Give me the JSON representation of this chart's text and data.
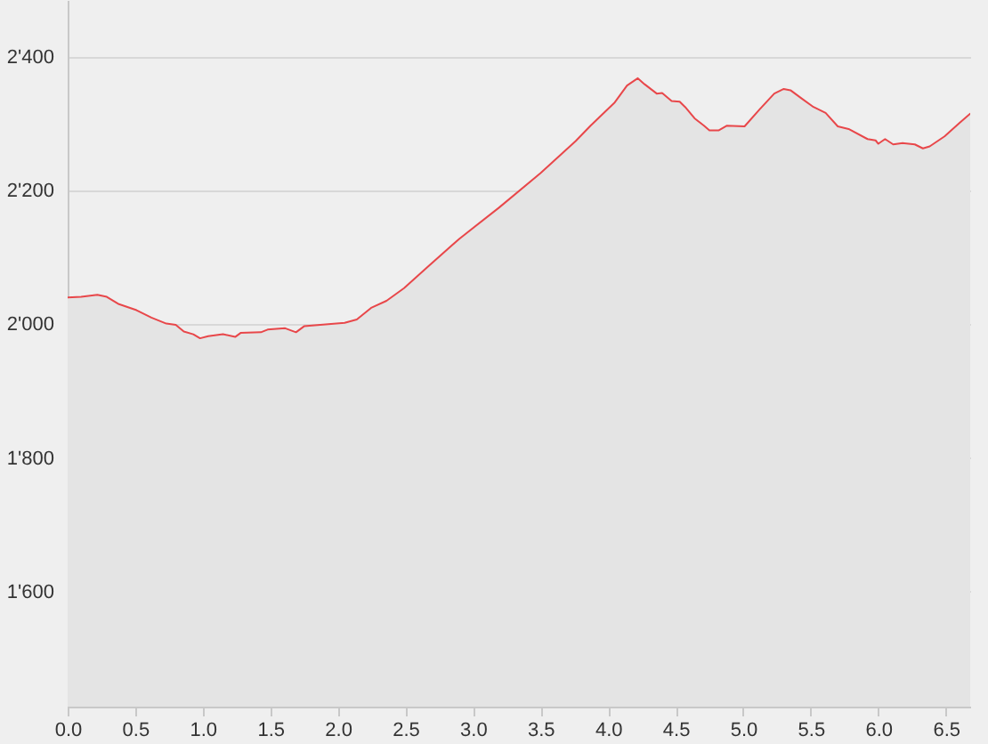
{
  "chart_data": {
    "type": "area",
    "x": [
      0,
      0.1,
      0.22,
      0.29,
      0.38,
      0.51,
      0.62,
      0.73,
      0.8,
      0.86,
      0.93,
      0.98,
      1.04,
      1.15,
      1.24,
      1.28,
      1.43,
      1.48,
      1.61,
      1.69,
      1.75,
      1.87,
      2.05,
      2.14,
      2.25,
      2.36,
      2.49,
      2.66,
      2.9,
      3.19,
      3.5,
      3.63,
      3.76,
      3.87,
      4.05,
      4.14,
      4.22,
      4.27,
      4.36,
      4.4,
      4.47,
      4.53,
      4.57,
      4.64,
      4.71,
      4.75,
      4.82,
      4.88,
      5.01,
      5.12,
      5.23,
      5.3,
      5.35,
      5.43,
      5.52,
      5.61,
      5.7,
      5.78,
      5.92,
      5.98,
      6.0,
      6.05,
      6.11,
      6.18,
      6.27,
      6.33,
      6.38,
      6.49,
      6.6,
      6.68
    ],
    "series": [
      {
        "color": "#e8474a",
        "values": [
          2040,
          2041,
          2044,
          2041,
          2030,
          2021,
          2010,
          2001,
          1999,
          1989,
          1985,
          1979,
          1982,
          1985,
          1981,
          1987,
          1988,
          1992,
          1994,
          1988,
          1997,
          1999,
          2002,
          2007,
          2025,
          2035,
          2054,
          2085,
          2128,
          2174,
          2226,
          2250,
          2274,
          2297,
          2332,
          2357,
          2368,
          2359,
          2345,
          2346,
          2334,
          2333,
          2325,
          2308,
          2297,
          2290,
          2290,
          2297,
          2296,
          2321,
          2345,
          2352,
          2350,
          2338,
          2325,
          2316,
          2296,
          2292,
          2277,
          2275,
          2270,
          2277,
          2269,
          2271,
          2269,
          2263,
          2266,
          2281,
          2301,
          2315
        ]
      }
    ],
    "xlim": [
      0,
      6.68
    ],
    "ylim": [
      1428,
      2485
    ],
    "xticks": [
      {
        "value": 0,
        "label": "0.0"
      },
      0.5,
      {
        "value": 1,
        "label": "1.0"
      },
      1.5,
      {
        "value": 2,
        "label": "2.0"
      },
      2.5,
      {
        "value": 3,
        "label": "3.0"
      },
      3.5,
      {
        "value": 4,
        "label": "4.0"
      },
      4.5,
      {
        "value": 5,
        "label": "5.0"
      },
      5.5,
      {
        "value": 6,
        "label": "6.0"
      },
      6.5
    ],
    "yticks": [
      {
        "value": 1600,
        "label": "1'600"
      },
      {
        "value": 1800,
        "label": "1'800"
      },
      {
        "value": 2000,
        "label": "2'000"
      },
      {
        "value": 2200,
        "label": "2'200"
      },
      {
        "value": 2400,
        "label": "2'400"
      }
    ],
    "grid": "y"
  }
}
